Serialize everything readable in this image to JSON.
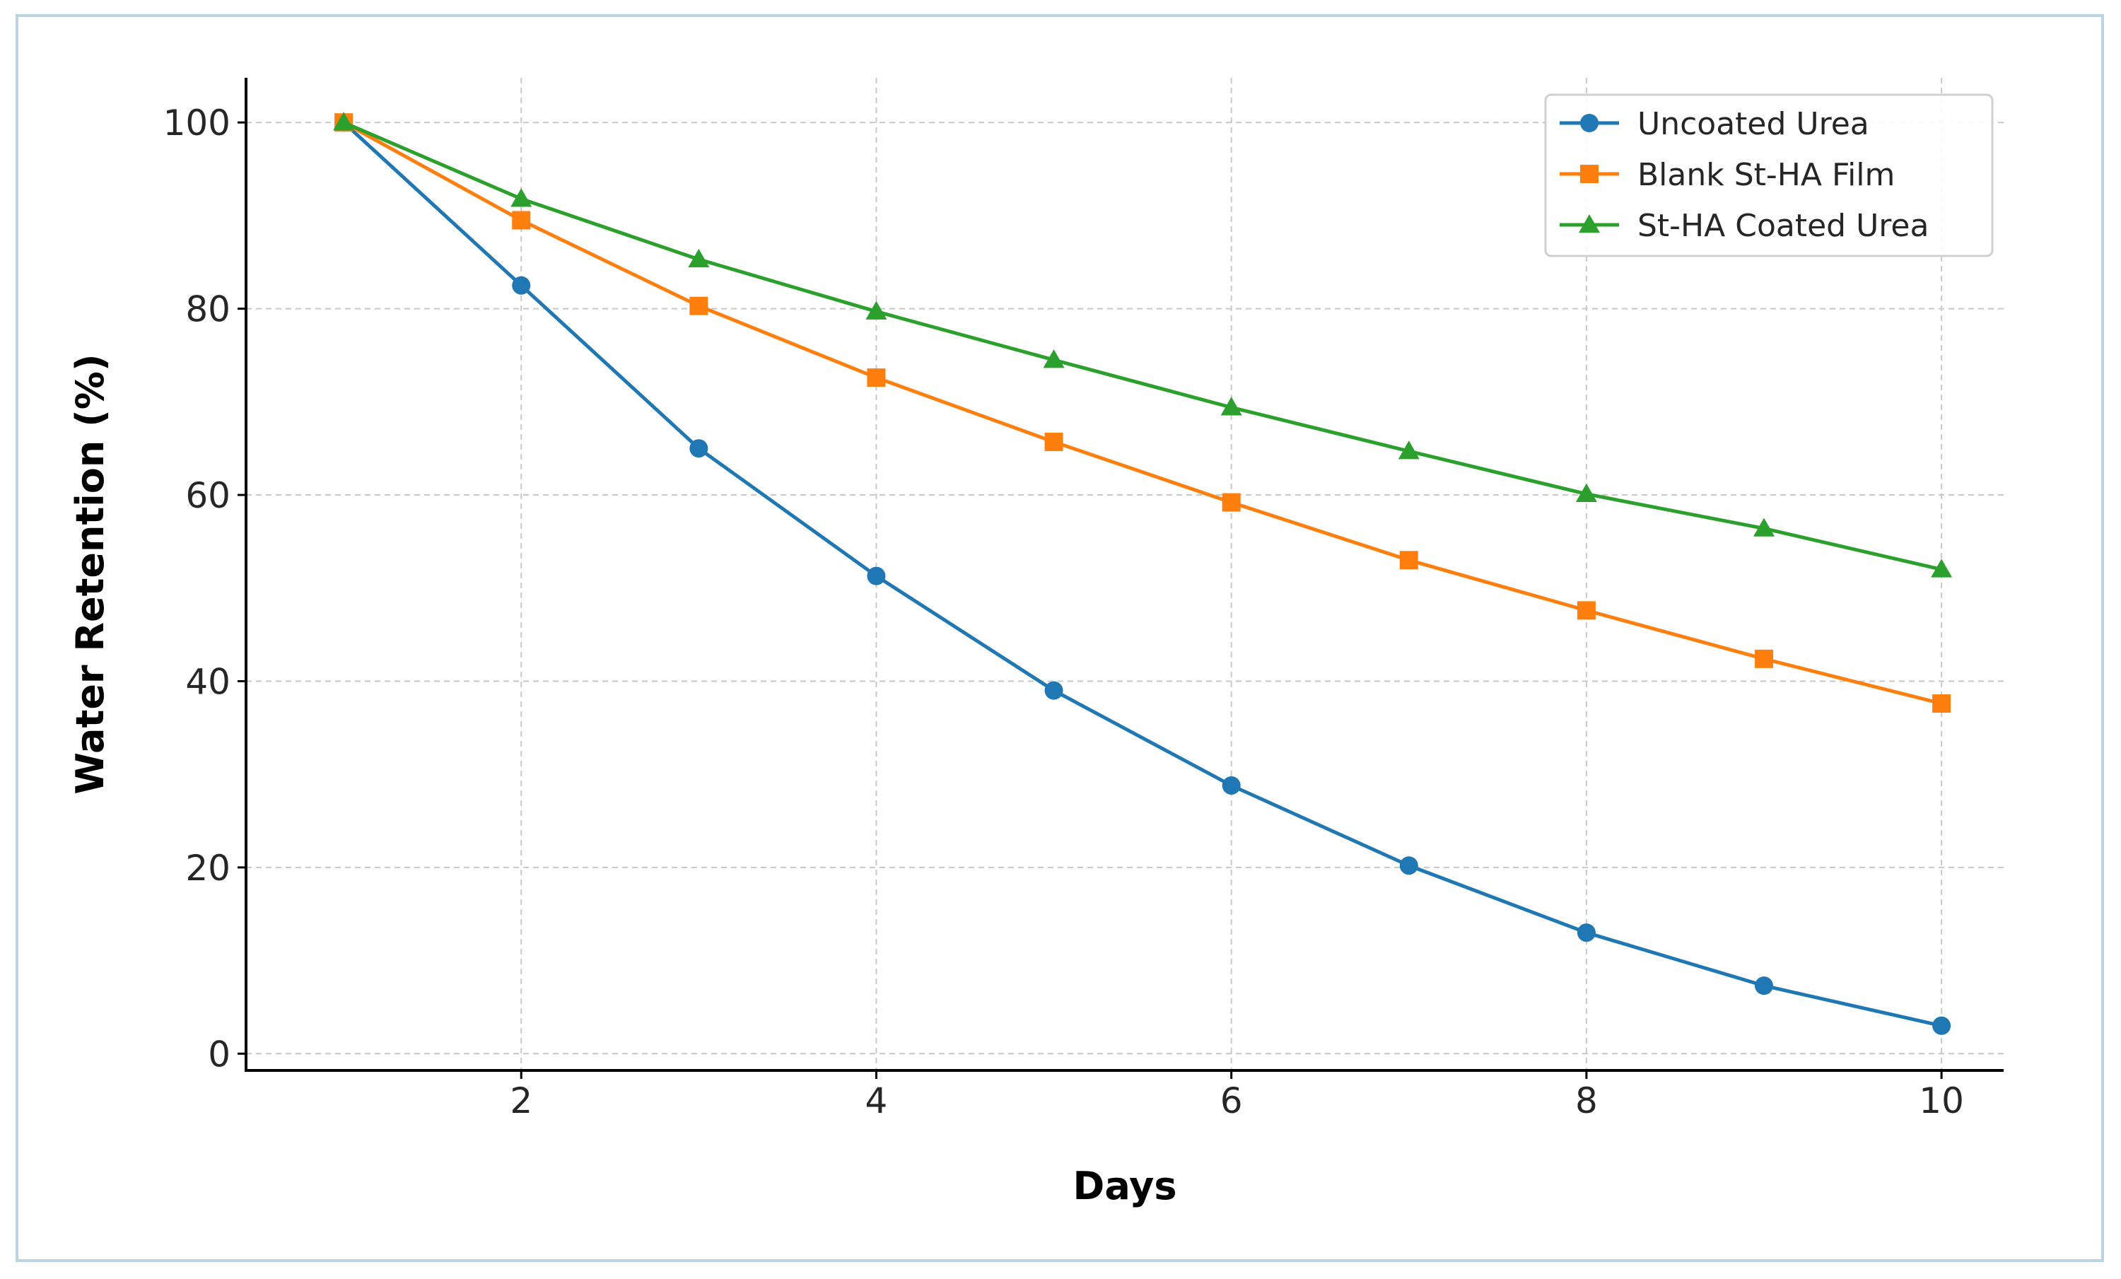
{
  "chart_data": {
    "type": "line",
    "xlabel": "Days",
    "ylabel": "Water Retention (%)",
    "xlim": [
      0.45,
      10.35
    ],
    "ylim": [
      -1.8,
      104.8
    ],
    "xticks": [
      2,
      4,
      6,
      8,
      10
    ],
    "yticks": [
      0,
      20,
      40,
      60,
      80,
      100
    ],
    "grid": true,
    "legend": "top-right",
    "x": [
      1,
      2,
      3,
      4,
      5,
      6,
      7,
      8,
      9,
      10
    ],
    "series": [
      {
        "name": "Uncoated Urea",
        "color": "#1f77b4",
        "marker": "circle",
        "values": [
          100,
          82.5,
          65,
          51.3,
          39,
          28.8,
          20.2,
          13,
          7.3,
          3
        ]
      },
      {
        "name": "Blank St-HA Film",
        "color": "#ff7f0e",
        "marker": "square",
        "values": [
          100,
          89.5,
          80.3,
          72.6,
          65.7,
          59.2,
          53,
          47.6,
          42.4,
          37.6
        ]
      },
      {
        "name": "St-HA Coated Urea",
        "color": "#2ca02c",
        "marker": "triangle",
        "values": [
          100,
          91.8,
          85.3,
          79.7,
          74.5,
          69.4,
          64.7,
          60.1,
          56.4,
          52
        ]
      }
    ]
  }
}
